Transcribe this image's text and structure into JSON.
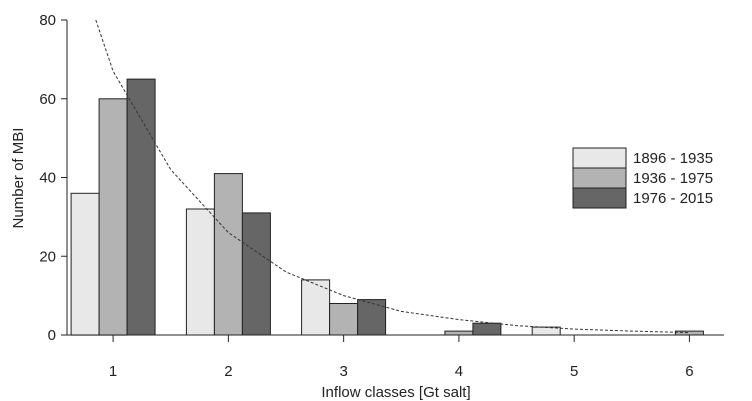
{
  "chart_data": {
    "type": "bar",
    "title": "",
    "xlabel": "Inflow classes [Gt salt]",
    "ylabel": "Number of MBI",
    "categories": [
      "1",
      "2",
      "3",
      "4",
      "5",
      "6"
    ],
    "series": [
      {
        "name": "1896 - 1935",
        "values": [
          36,
          32,
          14,
          0,
          2,
          0
        ],
        "color": "#e8e8e8"
      },
      {
        "name": "1936 - 1975",
        "values": [
          60,
          41,
          8,
          1,
          0,
          1
        ],
        "color": "#b3b3b3"
      },
      {
        "name": "1976 - 2015",
        "values": [
          65,
          31,
          9,
          3,
          0,
          0
        ],
        "color": "#666666"
      }
    ],
    "ylim": [
      0,
      80
    ],
    "yticks": [
      0,
      20,
      40,
      60,
      80
    ],
    "x_range": [
      0.6,
      6.3
    ],
    "trend_curve": {
      "style": "dashed",
      "color": "#333333",
      "x_start": 0.85,
      "x_end": 6.1,
      "points": [
        [
          0.85,
          80
        ],
        [
          1.0,
          67
        ],
        [
          1.5,
          42
        ],
        [
          2.0,
          26
        ],
        [
          2.5,
          16
        ],
        [
          3.0,
          10
        ],
        [
          3.5,
          6
        ],
        [
          4.0,
          3.9
        ],
        [
          4.5,
          2.4
        ],
        [
          5.0,
          1.5
        ],
        [
          5.5,
          1.0
        ],
        [
          6.0,
          0.6
        ]
      ]
    },
    "legend_position": "right",
    "grid": false
  }
}
